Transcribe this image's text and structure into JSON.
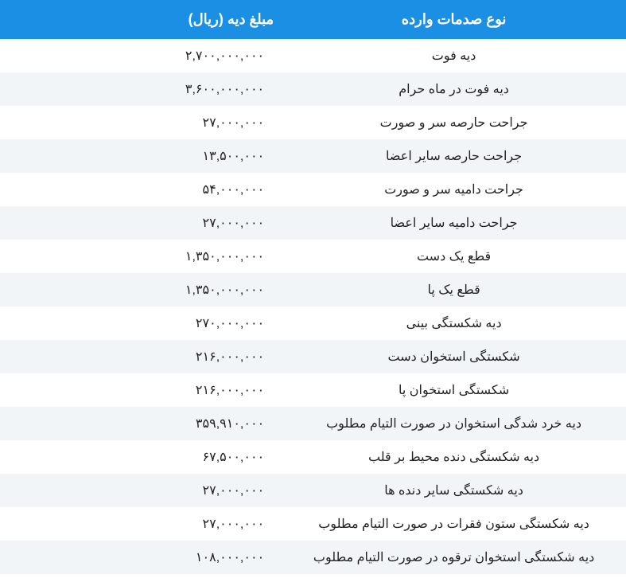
{
  "colors": {
    "header_bg": "#1a8fe3",
    "header_text": "#ffffff",
    "row_even_bg": "#ffffff",
    "row_odd_bg": "#f2f5f8",
    "cell_text": "#222222"
  },
  "typography": {
    "header_fontsize": 18,
    "header_fontweight": "bold",
    "cell_fontsize": 16,
    "font_family": "Tahoma"
  },
  "layout": {
    "col_type_width_pct": 55,
    "col_amount_width_pct": 45,
    "col_type_align": "center",
    "col_amount_align": "right"
  },
  "table": {
    "headers": {
      "type": "نوع صدمات وارده",
      "amount": "مبلغ دیه (ریال)"
    },
    "rows": [
      {
        "type": "دیه فوت",
        "amount": "۲,۷۰۰,۰۰۰,۰۰۰"
      },
      {
        "type": "دیه فوت در ماه حرام",
        "amount": "۳,۶۰۰,۰۰۰,۰۰۰"
      },
      {
        "type": "جراحت حارصه سر و صورت",
        "amount": "۲۷,۰۰۰,۰۰۰"
      },
      {
        "type": "جراحت حارصه سایر اعضا",
        "amount": "۱۳,۵۰۰,۰۰۰"
      },
      {
        "type": "جراحت دامیه سر و صورت",
        "amount": "۵۴,۰۰۰,۰۰۰"
      },
      {
        "type": "جراحت دامیه سایر اعضا",
        "amount": "۲۷,۰۰۰,۰۰۰"
      },
      {
        "type": "قطع یک دست",
        "amount": "۱,۳۵۰,۰۰۰,۰۰۰"
      },
      {
        "type": "قطع یک پا",
        "amount": "۱,۳۵۰,۰۰۰,۰۰۰"
      },
      {
        "type": "دیه شکستگی بینی",
        "amount": "۲۷۰,۰۰۰,۰۰۰"
      },
      {
        "type": "شکستگی استخوان دست",
        "amount": "۲۱۶,۰۰۰,۰۰۰"
      },
      {
        "type": "شکستگی استخوان پا",
        "amount": "۲۱۶,۰۰۰,۰۰۰"
      },
      {
        "type": "دیه خرد شدگی استخوان در صورت التیام مطلوب",
        "amount": "۳۵۹,۹۱۰,۰۰۰"
      },
      {
        "type": "دیه شکستگی دنده محیط بر قلب",
        "amount": "۶۷,۵۰۰,۰۰۰"
      },
      {
        "type": "دیه شکستگی سایر دنده ها",
        "amount": "۲۷,۰۰۰,۰۰۰"
      },
      {
        "type": "دیه شکستگی ستون فقرات در صورت التیام مطلوب",
        "amount": "۲۷,۰۰۰,۰۰۰"
      },
      {
        "type": "دیه شکستگی استخوان ترقوه در صورت التیام مطلوب",
        "amount": "۱۰۸,۰۰۰,۰۰۰"
      }
    ]
  }
}
